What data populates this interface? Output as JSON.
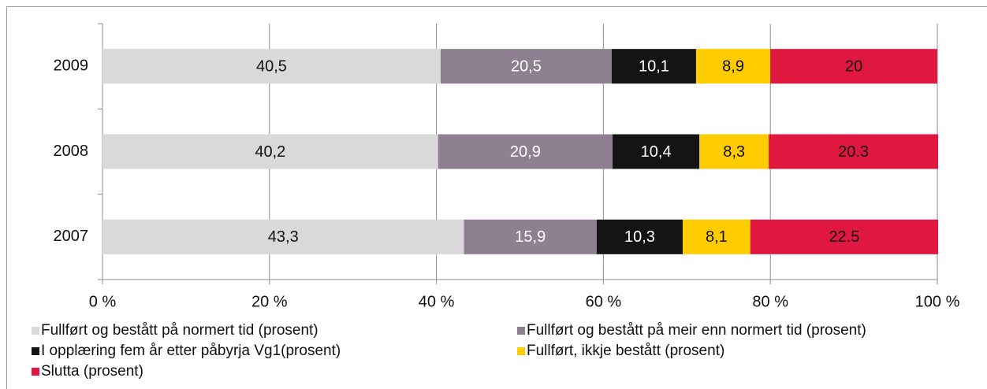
{
  "chart_data": {
    "type": "stacked-bar-horizontal",
    "categories": [
      "2009",
      "2008",
      "2007"
    ],
    "series": [
      {
        "name": "Fullført og bestått på normert tid (prosent)",
        "color": "#d9d9d9",
        "label_color": "#111111",
        "values": [
          40.5,
          40.2,
          43.3
        ],
        "value_labels": [
          "40,5",
          "40,2",
          "43,3"
        ]
      },
      {
        "name": "Fullført og bestått på meir enn normert tid (prosent)",
        "color": "#8e8090",
        "label_color": "#ffffff",
        "values": [
          20.5,
          20.9,
          15.9
        ],
        "value_labels": [
          "20,5",
          "20,9",
          "15,9"
        ]
      },
      {
        "name": "I opplæring fem år etter påbyrja Vg1(prosent)",
        "color": "#141414",
        "label_color": "#ffffff",
        "values": [
          10.1,
          10.4,
          10.3
        ],
        "value_labels": [
          "10,1",
          "10,4",
          "10,3"
        ]
      },
      {
        "name": "Fullført, ikkje bestått (prosent)",
        "color": "#ffcc00",
        "label_color": "#111111",
        "values": [
          8.9,
          8.3,
          8.1
        ],
        "value_labels": [
          "8,9",
          "8,3",
          "8,1"
        ]
      },
      {
        "name": "Slutta (prosent)",
        "color": "#e0173f",
        "label_color": "#111111",
        "values": [
          20,
          20.3,
          22.5
        ]
      }
    ],
    "xlim": [
      0,
      100
    ],
    "xticks": [
      {
        "value": 0,
        "label": "0 %"
      },
      {
        "value": 20,
        "label": "20 %"
      },
      {
        "value": 40,
        "label": "40 %"
      },
      {
        "value": 60,
        "label": "60 %"
      },
      {
        "value": 80,
        "label": "80 %"
      },
      {
        "value": 100,
        "label": "100 %"
      }
    ],
    "grid": true,
    "legend": "bottom"
  }
}
